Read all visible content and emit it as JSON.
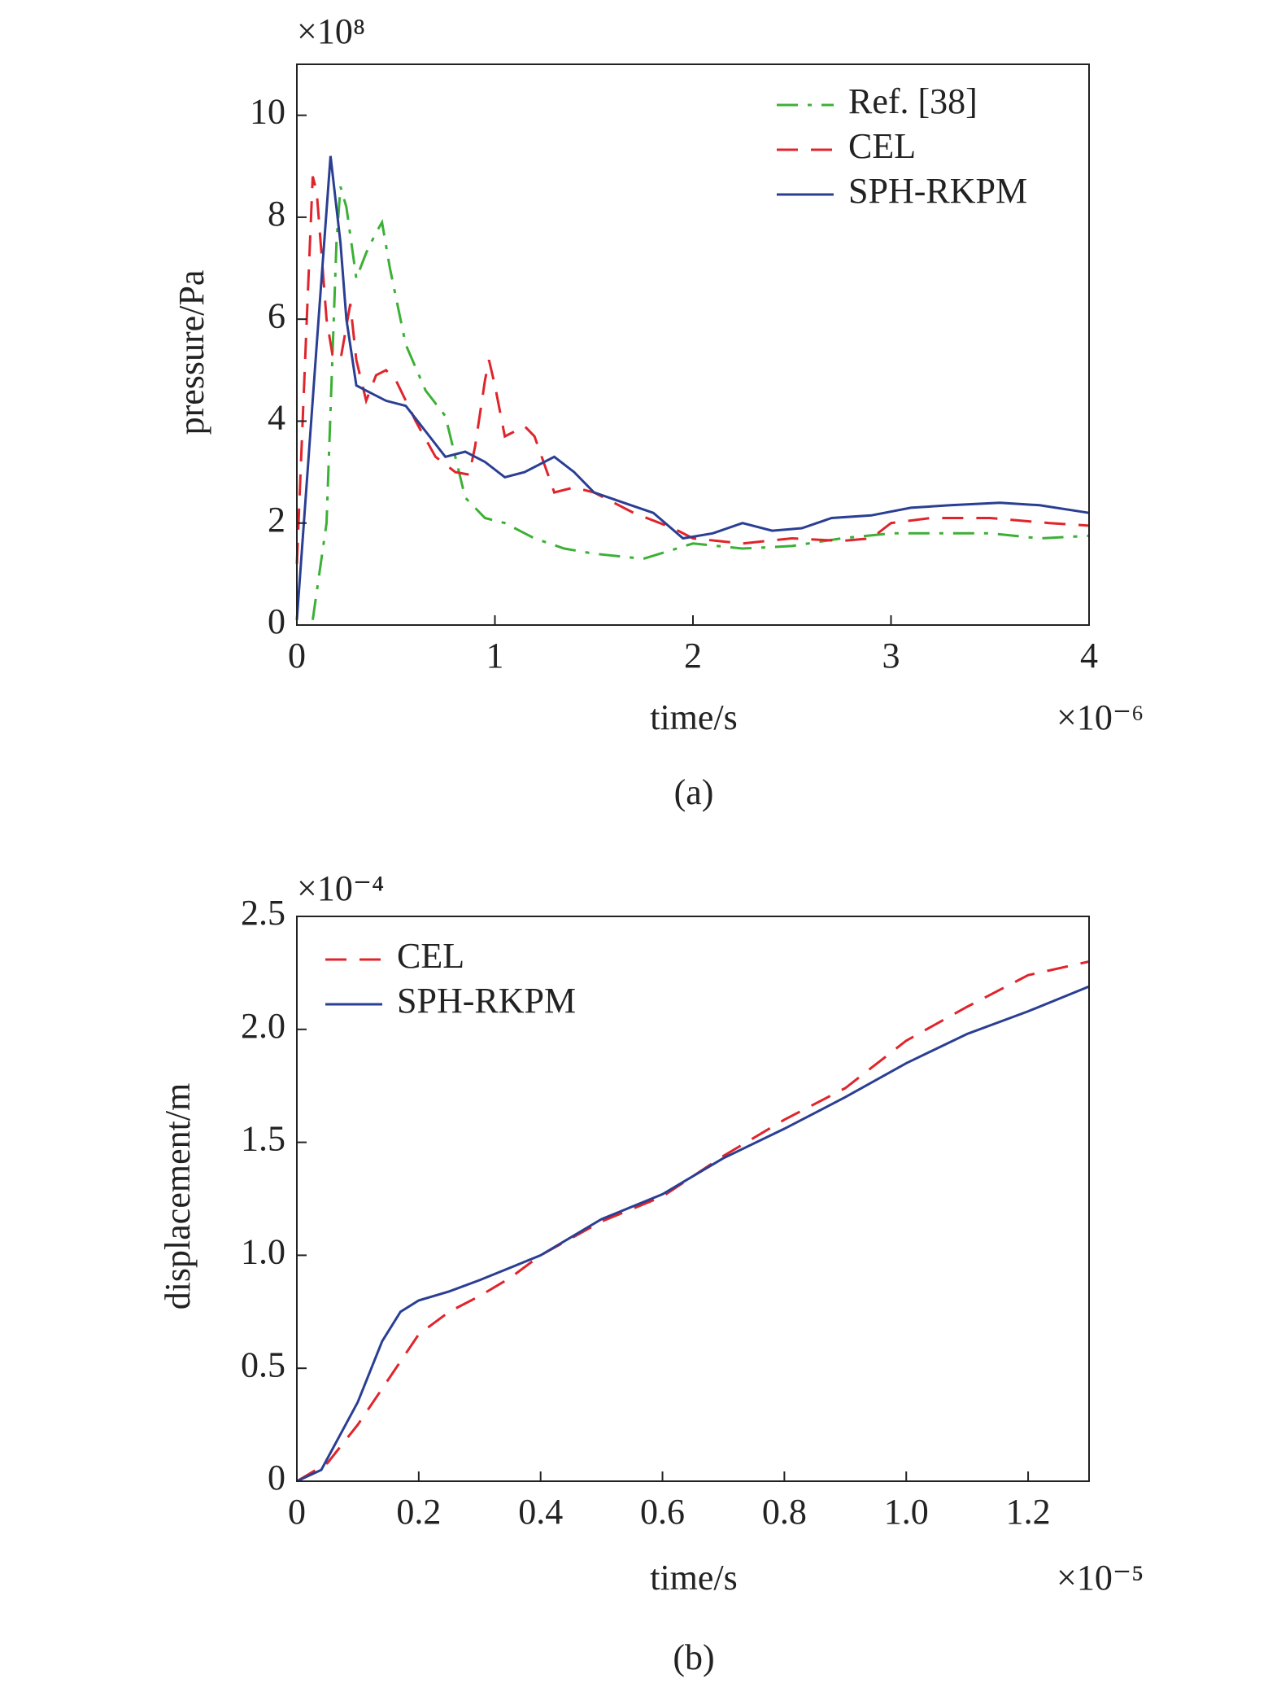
{
  "chart_data": [
    {
      "type": "line",
      "caption": "(a)",
      "x_label": "time/s",
      "y_label": "pressure/Pa",
      "x_multiplier": "×10⁻⁶",
      "y_multiplier": "×10⁸",
      "xlim": [
        0,
        4
      ],
      "xticks": [
        0,
        1,
        2,
        3,
        4
      ],
      "ylim": [
        0,
        11
      ],
      "yticks": [
        0,
        2,
        4,
        6,
        8,
        10
      ],
      "legend": "top-right",
      "series": [
        {
          "name": "Ref. [38]",
          "color": "#3cb035",
          "linestyle": "dash-dot",
          "x": [
            0.08,
            0.15,
            0.2,
            0.22,
            0.25,
            0.3,
            0.35,
            0.4,
            0.43,
            0.47,
            0.55,
            0.65,
            0.75,
            0.85,
            0.95,
            1.05,
            1.1,
            1.2,
            1.35,
            1.5,
            1.75,
            2.0,
            2.25,
            2.5,
            2.75,
            3.0,
            3.25,
            3.5,
            3.75,
            4
          ],
          "values": [
            0.1,
            2,
            7.5,
            8.6,
            8.2,
            6.8,
            7.3,
            7.7,
            7.9,
            7,
            5.5,
            4.6,
            4.1,
            2.5,
            2.1,
            2,
            1.9,
            1.7,
            1.5,
            1.4,
            1.3,
            1.6,
            1.5,
            1.55,
            1.7,
            1.8,
            1.8,
            1.8,
            1.7,
            1.75
          ]
        },
        {
          "name": "CEL",
          "color": "#e0242b",
          "linestyle": "dash",
          "x": [
            0,
            0.05,
            0.08,
            0.1,
            0.15,
            0.18,
            0.22,
            0.27,
            0.3,
            0.35,
            0.4,
            0.45,
            0.5,
            0.6,
            0.7,
            0.8,
            0.87,
            0.9,
            0.95,
            0.97,
            1,
            1.05,
            1.1,
            1.15,
            1.2,
            1.3,
            1.4,
            1.5,
            1.7,
            1.9,
            2.0,
            2.25,
            2.5,
            2.75,
            2.9,
            3.0,
            3.2,
            3.5,
            3.8,
            4
          ],
          "values": [
            1.2,
            6,
            8.8,
            8.5,
            6,
            5.3,
            5.2,
            6.3,
            5.2,
            4.4,
            4.9,
            5,
            4.8,
            4,
            3.3,
            3,
            2.95,
            3.5,
            4.8,
            5.2,
            4.7,
            3.7,
            3.8,
            3.9,
            3.7,
            2.6,
            2.7,
            2.6,
            2.2,
            1.9,
            1.7,
            1.6,
            1.7,
            1.65,
            1.7,
            2.0,
            2.1,
            2.1,
            2.0,
            1.95
          ]
        },
        {
          "name": "SPH-RKPM",
          "color": "#2a3f93",
          "linestyle": "solid",
          "x": [
            0,
            0.1,
            0.17,
            0.22,
            0.25,
            0.3,
            0.35,
            0.45,
            0.55,
            0.65,
            0.75,
            0.85,
            0.95,
            1.05,
            1.15,
            1.3,
            1.4,
            1.5,
            1.65,
            1.8,
            1.95,
            2.1,
            2.25,
            2.4,
            2.55,
            2.7,
            2.9,
            3.1,
            3.3,
            3.55,
            3.75,
            4
          ],
          "values": [
            0.1,
            5.5,
            9.2,
            7.5,
            6,
            4.7,
            4.6,
            4.4,
            4.3,
            3.8,
            3.3,
            3.4,
            3.2,
            2.9,
            3,
            3.3,
            3.0,
            2.6,
            2.4,
            2.2,
            1.7,
            1.8,
            2,
            1.85,
            1.9,
            2.1,
            2.15,
            2.3,
            2.35,
            2.4,
            2.35,
            2.2
          ]
        }
      ]
    },
    {
      "type": "line",
      "caption": "(b)",
      "x_label": "time/s",
      "y_label": "displacement/m",
      "x_multiplier": "×10⁻⁵",
      "y_multiplier": "×10⁻⁴",
      "xlim": [
        0,
        1.3
      ],
      "xticks": [
        0,
        0.2,
        0.4,
        0.6,
        0.8,
        {
          "value": 1,
          "label": "1.0"
        },
        1.2
      ],
      "ylim": [
        0,
        2.5
      ],
      "yticks": [
        0,
        0.5,
        {
          "value": 1,
          "label": "1.0"
        },
        1.5,
        {
          "value": 2,
          "label": "2.0"
        },
        2.5
      ],
      "legend": "top-left",
      "series": [
        {
          "name": "CEL",
          "color": "#e0242b",
          "linestyle": "dash",
          "x": [
            0,
            0.05,
            0.1,
            0.15,
            0.2,
            0.25,
            0.3,
            0.35,
            0.4,
            0.5,
            0.6,
            0.7,
            0.8,
            0.9,
            1.0,
            1.1,
            1.2,
            1.3
          ],
          "values": [
            0,
            0.08,
            0.25,
            0.45,
            0.65,
            0.75,
            0.82,
            0.9,
            1.0,
            1.15,
            1.26,
            1.44,
            1.6,
            1.74,
            1.95,
            2.1,
            2.24,
            2.3
          ]
        },
        {
          "name": "SPH-RKPM",
          "color": "#2a3f93",
          "linestyle": "solid",
          "x": [
            0,
            0.04,
            0.1,
            0.14,
            0.17,
            0.2,
            0.25,
            0.3,
            0.4,
            0.5,
            0.6,
            0.7,
            0.8,
            0.9,
            1.0,
            1.1,
            1.2,
            1.3
          ],
          "values": [
            0,
            0.05,
            0.35,
            0.62,
            0.75,
            0.8,
            0.84,
            0.89,
            1.0,
            1.16,
            1.27,
            1.43,
            1.56,
            1.7,
            1.85,
            1.98,
            2.08,
            2.19
          ]
        }
      ]
    }
  ]
}
